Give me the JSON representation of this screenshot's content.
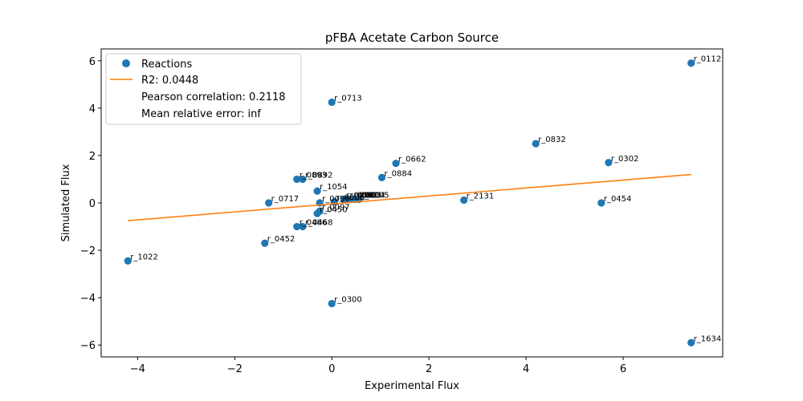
{
  "chart_data": {
    "type": "scatter",
    "title": "pFBA Acetate Carbon Source",
    "xlabel": "Experimental Flux",
    "ylabel": "Simulated Flux",
    "xlim": [
      -4.75,
      8.05
    ],
    "ylim": [
      -6.5,
      6.5
    ],
    "xticks": [
      "−4",
      "−2",
      "0",
      "2",
      "4",
      "6"
    ],
    "xtick_values": [
      -4,
      -2,
      0,
      2,
      4,
      6
    ],
    "yticks": [
      "−6",
      "−4",
      "−2",
      "0",
      "2",
      "4",
      "6"
    ],
    "ytick_values": [
      -6,
      -4,
      -2,
      0,
      2,
      4,
      6
    ],
    "grid": false,
    "legend_position": "top-left",
    "legend": {
      "series_label": "Reactions",
      "fit_label": "R2: 0.0448",
      "pearson": "Pearson correlation: 0.2118",
      "mre": "Mean relative error: inf"
    },
    "colors": {
      "points": "#1f77b4",
      "fit_line": "#ff7f0e"
    },
    "fit_line": {
      "x": [
        -4.2,
        7.4
      ],
      "y": [
        -0.75,
        1.2
      ]
    },
    "points": [
      {
        "label": "r_0112",
        "x": 7.4,
        "y": 5.9
      },
      {
        "label": "r_0713",
        "x": 0.0,
        "y": 4.25
      },
      {
        "label": "r_0832",
        "x": 4.2,
        "y": 2.5
      },
      {
        "label": "r_0302",
        "x": 5.7,
        "y": 1.7
      },
      {
        "label": "r_0662",
        "x": 1.32,
        "y": 1.67
      },
      {
        "label": "r_0884",
        "x": 1.03,
        "y": 1.07
      },
      {
        "label": "r_0893",
        "x": -0.72,
        "y": 1.0
      },
      {
        "label": "r_0892",
        "x": -0.6,
        "y": 1.0
      },
      {
        "label": "r_1054",
        "x": -0.3,
        "y": 0.5
      },
      {
        "label": "r_0717",
        "x": -1.3,
        "y": 0.0
      },
      {
        "label": "r_0454",
        "x": 5.55,
        "y": 0.0
      },
      {
        "label": "r_2131",
        "x": 2.72,
        "y": 0.12
      },
      {
        "label": "r_0096",
        "x": -0.25,
        "y": 0.0
      },
      {
        "label": "r_0097",
        "x": -0.25,
        "y": -0.35
      },
      {
        "label": "r_0450",
        "x": -0.3,
        "y": -0.45
      },
      {
        "label": "r_0001",
        "x": 0.25,
        "y": 0.15
      },
      {
        "label": "r_0002",
        "x": 0.32,
        "y": 0.15
      },
      {
        "label": "r_0003",
        "x": 0.4,
        "y": 0.15
      },
      {
        "label": "r_0004",
        "x": 0.48,
        "y": 0.15
      },
      {
        "label": "r_0005",
        "x": 0.56,
        "y": 0.15
      },
      {
        "label": "r_0006",
        "x": 0.05,
        "y": 0.05
      },
      {
        "label": "r_0486",
        "x": -0.72,
        "y": -1.0
      },
      {
        "label": "r_0468",
        "x": -0.6,
        "y": -1.0
      },
      {
        "label": "r_0452",
        "x": -1.38,
        "y": -1.7
      },
      {
        "label": "r_1022",
        "x": -4.2,
        "y": -2.45
      },
      {
        "label": "r_0300",
        "x": 0.0,
        "y": -4.25
      },
      {
        "label": "r_1634",
        "x": 7.4,
        "y": -5.9
      }
    ]
  }
}
